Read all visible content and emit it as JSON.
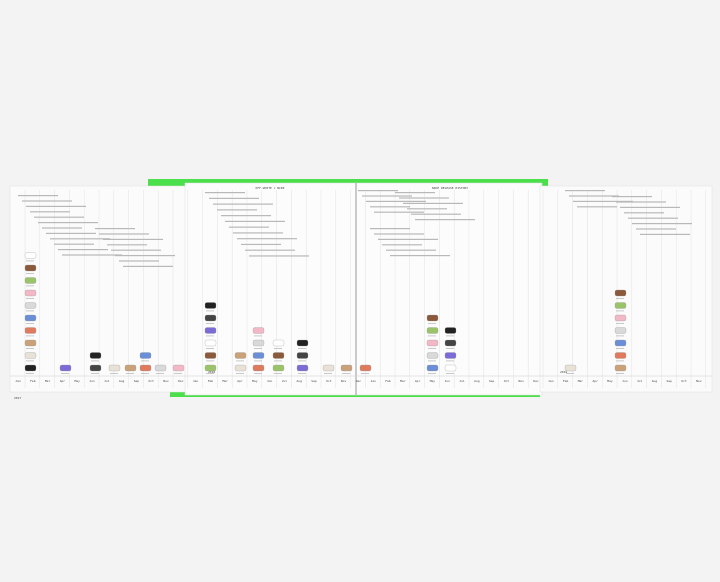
{
  "spread": {
    "header_left": "OFF-WHITE × NIKE",
    "header_right": "NIKE RELEASE HISTORY",
    "months": [
      "Jan",
      "Feb",
      "Mar",
      "Apr",
      "May",
      "Jun",
      "Jul",
      "Aug",
      "Sep",
      "Oct",
      "Nov",
      "Dec"
    ],
    "years": [
      "2017",
      "2018",
      "2019"
    ]
  }
}
